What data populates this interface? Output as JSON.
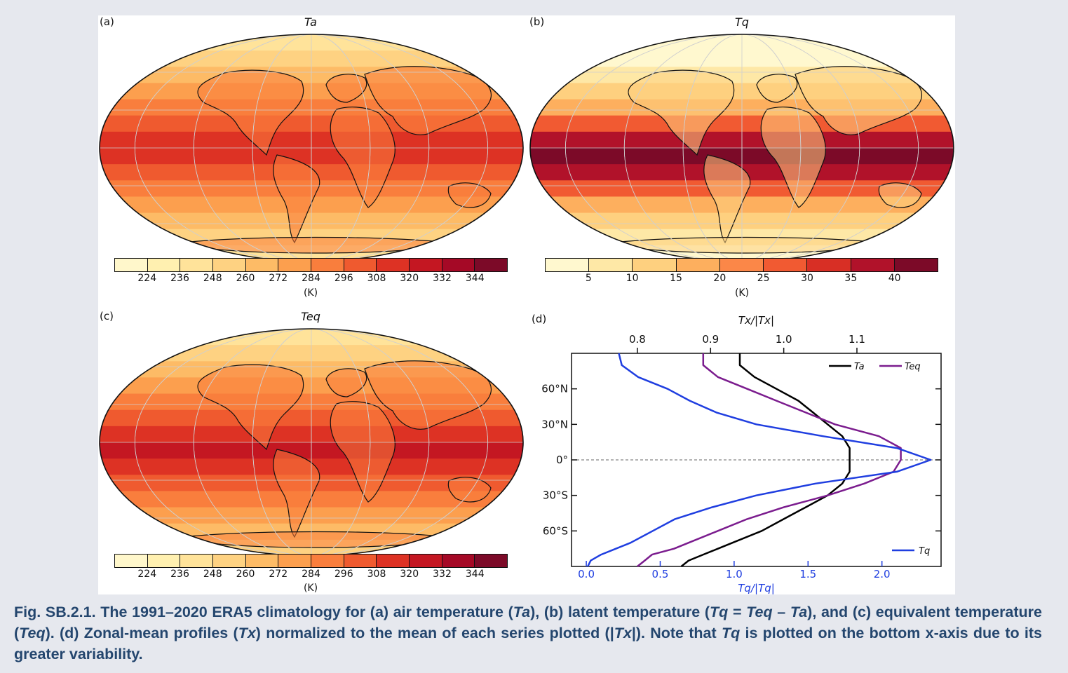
{
  "caption": {
    "lead": "Fig. SB.2.1.",
    "segments": [
      {
        "t": " The 1991–2020 ERA5 climatology for (a) air temperature (",
        "i": false
      },
      {
        "t": "Ta",
        "i": true
      },
      {
        "t": "), (b) latent temperature (",
        "i": false
      },
      {
        "t": "Tq",
        "i": true
      },
      {
        "t": " = ",
        "i": false
      },
      {
        "t": "Teq",
        "i": true
      },
      {
        "t": " – ",
        "i": false
      },
      {
        "t": "Ta",
        "i": true
      },
      {
        "t": "), and (c) equivalent temperature (",
        "i": false
      },
      {
        "t": "Teq",
        "i": true
      },
      {
        "t": "). (d) Zonal-mean profiles (",
        "i": false
      },
      {
        "t": "Tx",
        "i": true
      },
      {
        "t": ") normalized to the mean of each series plotted (|",
        "i": false
      },
      {
        "t": "Tx",
        "i": true
      },
      {
        "t": "|). Note that ",
        "i": false
      },
      {
        "t": "Tq",
        "i": true
      },
      {
        "t": " is plotted on the bottom x-axis due to its greater variability.",
        "i": false
      }
    ]
  },
  "panels": {
    "a": {
      "letter": "(a)",
      "title": "Ta",
      "colorbar": {
        "ticks": [
          "224",
          "236",
          "248",
          "260",
          "272",
          "284",
          "296",
          "308",
          "320",
          "332",
          "344"
        ],
        "unit": "(K)",
        "colors": [
          "#fff7cb",
          "#fff0b0",
          "#ffe39a",
          "#fed282",
          "#fdbb66",
          "#fc9f4e",
          "#f97e3d",
          "#ef5a2f",
          "#dd3224",
          "#c41722",
          "#a50926",
          "#7c0a28"
        ]
      }
    },
    "b": {
      "letter": "(b)",
      "title": "Tq",
      "colorbar": {
        "ticks": [
          "5",
          "10",
          "15",
          "20",
          "25",
          "30",
          "35",
          "40"
        ],
        "unit": "(K)",
        "colors": [
          "#fff8cf",
          "#fee8a6",
          "#fed07f",
          "#fdaf5e",
          "#fb8748",
          "#f15a32",
          "#d82f25",
          "#b1122a",
          "#7c0a28"
        ]
      }
    },
    "c": {
      "letter": "(c)",
      "title": "Teq",
      "colorbar": {
        "ticks": [
          "224",
          "236",
          "248",
          "260",
          "272",
          "284",
          "296",
          "308",
          "320",
          "332",
          "344"
        ],
        "unit": "(K)",
        "colors": [
          "#fff7cb",
          "#fff0b0",
          "#ffe39a",
          "#fed282",
          "#fdbb66",
          "#fc9f4e",
          "#f97e3d",
          "#ef5a2f",
          "#dd3224",
          "#c41722",
          "#a50926",
          "#7c0a28"
        ]
      }
    },
    "d": {
      "letter": "(d)"
    }
  },
  "chart_data": [
    {
      "type": "heatmap",
      "panel": "a",
      "title": "Ta",
      "colorbar_label": "(K)",
      "colorbar_ticks": [
        224,
        236,
        248,
        260,
        272,
        284,
        296,
        308,
        320,
        332,
        344
      ],
      "projection": "Robinson"
    },
    {
      "type": "heatmap",
      "panel": "b",
      "title": "Tq",
      "colorbar_label": "(K)",
      "colorbar_ticks": [
        5,
        10,
        15,
        20,
        25,
        30,
        35,
        40
      ],
      "projection": "Robinson"
    },
    {
      "type": "heatmap",
      "panel": "c",
      "title": "Teq",
      "colorbar_label": "(K)",
      "colorbar_ticks": [
        224,
        236,
        248,
        260,
        272,
        284,
        296,
        308,
        320,
        332,
        344
      ],
      "projection": "Robinson"
    },
    {
      "type": "line",
      "panel": "d",
      "top_xlabel": "Tx/|Tx|",
      "bottom_xlabel": "Tq/|Tq|",
      "top_xlim": [
        0.71,
        1.215
      ],
      "bottom_xlim": [
        -0.1,
        2.4
      ],
      "top_xticks": [
        0.8,
        0.9,
        1.0,
        1.1
      ],
      "top_xtick_labels": [
        "0.8",
        "0.9",
        "1.0",
        "1.1"
      ],
      "bottom_xticks": [
        0.0,
        0.5,
        1.0,
        1.5,
        2.0
      ],
      "bottom_xtick_labels": [
        "0.0",
        "0.5",
        "1.0",
        "1.5",
        "2.0"
      ],
      "ylim": [
        -90,
        90
      ],
      "yticks": [
        60,
        30,
        0,
        -30,
        -60
      ],
      "ytick_labels": [
        "60°N",
        "30°N",
        "0°",
        "30°S",
        "60°S"
      ],
      "zero_line": "dashed",
      "legend_top": "top-right",
      "legend_bottom": "bottom-right",
      "series": [
        {
          "name": "Ta",
          "axis": "top",
          "color": "#000000",
          "lat": [
            90,
            80,
            70,
            60,
            50,
            40,
            30,
            20,
            10,
            0,
            -10,
            -20,
            -30,
            -40,
            -50,
            -60,
            -70,
            -75,
            -80,
            -85,
            -90
          ],
          "x": [
            0.94,
            0.94,
            0.96,
            0.99,
            1.02,
            1.04,
            1.06,
            1.08,
            1.09,
            1.09,
            1.09,
            1.08,
            1.06,
            1.03,
            1.0,
            0.97,
            0.93,
            0.91,
            0.89,
            0.87,
            0.86
          ]
        },
        {
          "name": "Teq",
          "axis": "top",
          "color": "#7b1c8e",
          "lat": [
            90,
            80,
            70,
            60,
            50,
            40,
            30,
            20,
            10,
            0,
            -10,
            -20,
            -30,
            -40,
            -50,
            -60,
            -70,
            -75,
            -80,
            -85,
            -90
          ],
          "x": [
            0.89,
            0.89,
            0.91,
            0.95,
            0.99,
            1.03,
            1.07,
            1.13,
            1.16,
            1.16,
            1.15,
            1.11,
            1.06,
            1.0,
            0.95,
            0.91,
            0.87,
            0.85,
            0.82,
            0.81,
            0.8
          ]
        },
        {
          "name": "Tq",
          "axis": "bottom",
          "color": "#1f3ee0",
          "lat": [
            90,
            80,
            70,
            60,
            50,
            40,
            30,
            20,
            10,
            0,
            -10,
            -20,
            -30,
            -40,
            -50,
            -60,
            -70,
            -75,
            -80,
            -85,
            -90
          ],
          "x": [
            0.22,
            0.24,
            0.35,
            0.55,
            0.7,
            0.88,
            1.15,
            1.6,
            2.1,
            2.33,
            2.1,
            1.55,
            1.15,
            0.85,
            0.6,
            0.45,
            0.3,
            0.2,
            0.1,
            0.03,
            0.01
          ]
        }
      ]
    }
  ]
}
